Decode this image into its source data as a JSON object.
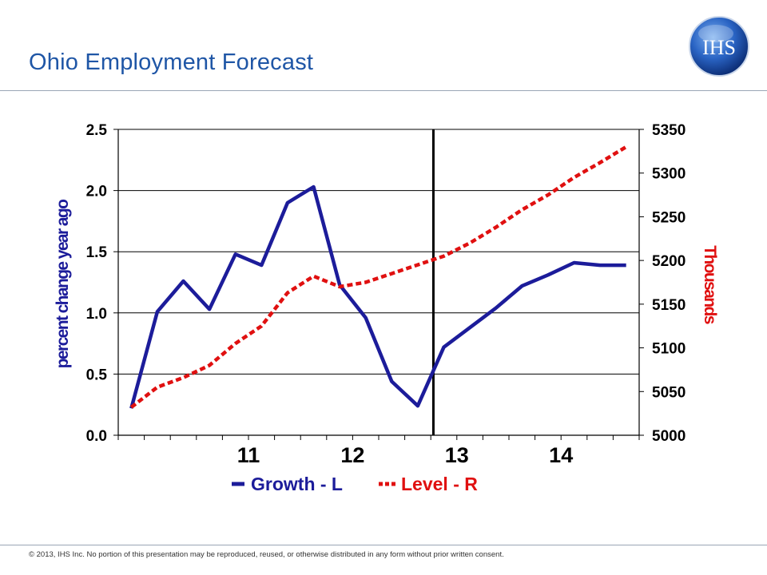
{
  "slide": {
    "title": "Ohio Employment Forecast",
    "logo_text": "IHS",
    "footer": "© 2013, IHS Inc. No portion of this presentation may be reproduced, reused, or otherwise distributed in any form without prior written consent."
  },
  "colors": {
    "title": "#1f56a6",
    "growth": "#1c1c9a",
    "level": "#e01010"
  },
  "chart_data": {
    "type": "line",
    "title": "",
    "xlabel": "",
    "ylabel": "percent change year ago",
    "ylabel_right": "Thousands",
    "x_tick_labels": [
      "11",
      "12",
      "13",
      "14"
    ],
    "y_left": {
      "min": 0.0,
      "max": 2.5,
      "ticks": [
        "0.0",
        "0.5",
        "1.0",
        "1.5",
        "2.0",
        "2.5"
      ]
    },
    "y_right": {
      "min": 5000,
      "max": 5350,
      "ticks": [
        "5000",
        "5050",
        "5100",
        "5150",
        "5200",
        "5250",
        "5300",
        "5350"
      ]
    },
    "grid": true,
    "forecast_divider_after_index": 13,
    "legend": [
      "Growth - L",
      "Level - R"
    ],
    "series": [
      {
        "name": "Growth - L",
        "axis": "left",
        "style": "solid",
        "values": [
          0.22,
          1.01,
          1.26,
          1.03,
          1.48,
          1.39,
          1.9,
          2.03,
          1.23,
          0.96,
          0.44,
          0.24,
          0.72,
          0.88,
          1.04,
          1.22,
          1.31,
          1.41,
          1.39,
          1.39
        ]
      },
      {
        "name": "Level - R",
        "axis": "right",
        "style": "dashed",
        "values": [
          5032,
          5055,
          5066,
          5080,
          5105,
          5125,
          5163,
          5182,
          5170,
          5175,
          5185,
          5195,
          5205,
          5220,
          5238,
          5258,
          5275,
          5295,
          5312,
          5330
        ]
      }
    ]
  }
}
